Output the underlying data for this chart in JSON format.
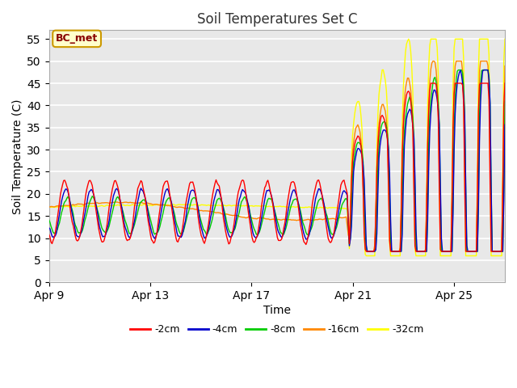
{
  "title": "Soil Temperatures Set C",
  "xlabel": "Time",
  "ylabel": "Soil Temperature (C)",
  "ylim": [
    0,
    57
  ],
  "yticks": [
    0,
    5,
    10,
    15,
    20,
    25,
    30,
    35,
    40,
    45,
    50,
    55
  ],
  "colors": {
    "-2cm": "#ff0000",
    "-4cm": "#0000cc",
    "-8cm": "#00cc00",
    "-16cm": "#ff8800",
    "-32cm": "#ffff00"
  },
  "legend_labels": [
    "-2cm",
    "-4cm",
    "-8cm",
    "-16cm",
    "-32cm"
  ],
  "annotation_text": "BC_met",
  "annotation_bg": "#ffffcc",
  "annotation_border": "#cc9900",
  "annotation_text_color": "#880000",
  "fig_bg": "#ffffff",
  "plot_bg": "#e8e8e8",
  "grid_color": "#ffffff",
  "x_tick_labels": [
    "Apr 9",
    "Apr 13",
    "Apr 17",
    "Apr 21",
    "Apr 25"
  ],
  "x_tick_positions": [
    0,
    4,
    8,
    12,
    16
  ]
}
